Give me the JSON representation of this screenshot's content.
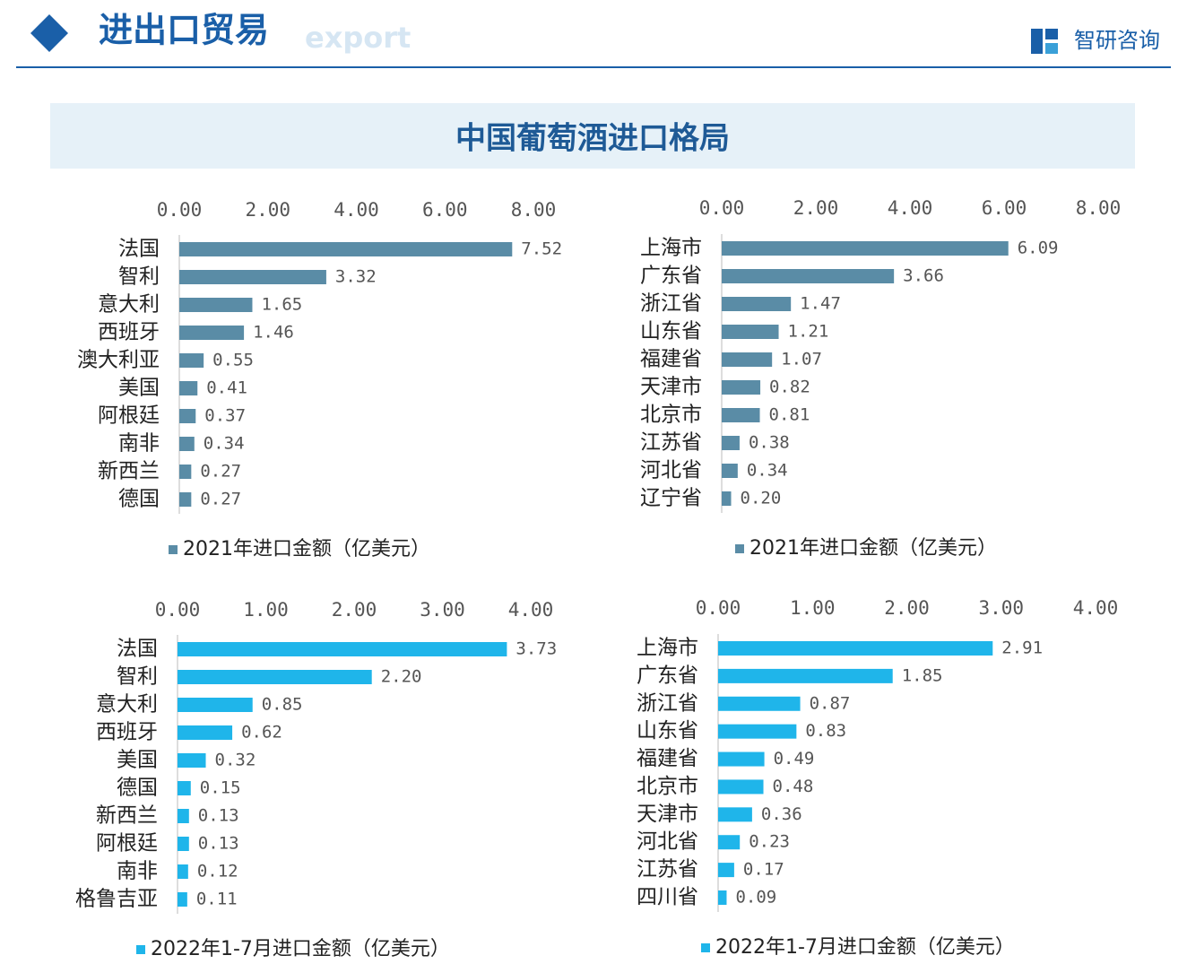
{
  "header": {
    "title": "进出口贸易",
    "subtitle": "export",
    "brand": "智研咨询"
  },
  "banner": "中国葡萄酒进口格局",
  "chart_data": [
    {
      "type": "bar",
      "orientation": "horizontal",
      "categories": [
        "法国",
        "智利",
        "意大利",
        "西班牙",
        "澳大利亚",
        "美国",
        "阿根廷",
        "南非",
        "新西兰",
        "德国"
      ],
      "series": [
        {
          "name": "2021年进口金额（亿美元）",
          "color": "#5a8ca6",
          "values": [
            7.52,
            3.32,
            1.65,
            1.46,
            0.55,
            0.41,
            0.37,
            0.34,
            0.27,
            0.27
          ],
          "value_labels": [
            "7.52",
            "3.32",
            "1.65",
            "1.46",
            "0.55",
            "0.41",
            "0.37",
            "0.34",
            "0.27",
            "0.27"
          ]
        }
      ],
      "xlim": [
        0,
        8
      ],
      "xticks": [
        {
          "value": 0,
          "label": "0.00"
        },
        {
          "value": 2,
          "label": "2.00"
        },
        {
          "value": 4,
          "label": "4.00"
        },
        {
          "value": 6,
          "label": "6.00"
        },
        {
          "value": 8,
          "label": "8.00"
        }
      ]
    },
    {
      "type": "bar",
      "orientation": "horizontal",
      "categories": [
        "上海市",
        "广东省",
        "浙江省",
        "山东省",
        "福建省",
        "天津市",
        "北京市",
        "江苏省",
        "河北省",
        "辽宁省"
      ],
      "series": [
        {
          "name": "2021年进口金额（亿美元）",
          "color": "#5a8ca6",
          "values": [
            6.09,
            3.66,
            1.47,
            1.21,
            1.07,
            0.82,
            0.81,
            0.38,
            0.34,
            0.2
          ],
          "value_labels": [
            "6.09",
            "3.66",
            "1.47",
            "1.21",
            "1.07",
            "0.82",
            "0.81",
            "0.38",
            "0.34",
            "0.20"
          ]
        }
      ],
      "xlim": [
        0,
        8
      ],
      "xticks": [
        {
          "value": 0,
          "label": "0.00"
        },
        {
          "value": 2,
          "label": "2.00"
        },
        {
          "value": 4,
          "label": "4.00"
        },
        {
          "value": 6,
          "label": "6.00"
        },
        {
          "value": 8,
          "label": "8.00"
        }
      ]
    },
    {
      "type": "bar",
      "orientation": "horizontal",
      "categories": [
        "法国",
        "智利",
        "意大利",
        "西班牙",
        "美国",
        "德国",
        "新西兰",
        "阿根廷",
        "南非",
        "格鲁吉亚"
      ],
      "series": [
        {
          "name": "2022年1-7月进口金额（亿美元）",
          "color": "#1fb5ea",
          "values": [
            3.73,
            2.2,
            0.85,
            0.62,
            0.32,
            0.15,
            0.13,
            0.13,
            0.12,
            0.11
          ],
          "value_labels": [
            "3.73",
            "2.20",
            "0.85",
            "0.62",
            "0.32",
            "0.15",
            "0.13",
            "0.13",
            "0.12",
            "0.11"
          ]
        }
      ],
      "xlim": [
        0,
        4
      ],
      "xticks": [
        {
          "value": 0,
          "label": "0.00"
        },
        {
          "value": 1,
          "label": "1.00"
        },
        {
          "value": 2,
          "label": "2.00"
        },
        {
          "value": 3,
          "label": "3.00"
        },
        {
          "value": 4,
          "label": "4.00"
        }
      ]
    },
    {
      "type": "bar",
      "orientation": "horizontal",
      "categories": [
        "上海市",
        "广东省",
        "浙江省",
        "山东省",
        "福建省",
        "北京市",
        "天津市",
        "河北省",
        "江苏省",
        "四川省"
      ],
      "series": [
        {
          "name": "2022年1-7月进口金额（亿美元）",
          "color": "#1fb5ea",
          "values": [
            2.91,
            1.85,
            0.87,
            0.83,
            0.49,
            0.48,
            0.36,
            0.23,
            0.17,
            0.09
          ],
          "value_labels": [
            "2.91",
            "1.85",
            "0.87",
            "0.83",
            "0.49",
            "0.48",
            "0.36",
            "0.23",
            "0.17",
            "0.09"
          ]
        }
      ],
      "xlim": [
        0,
        4
      ],
      "xticks": [
        {
          "value": 0,
          "label": "0.00"
        },
        {
          "value": 1,
          "label": "1.00"
        },
        {
          "value": 2,
          "label": "2.00"
        },
        {
          "value": 3,
          "label": "3.00"
        },
        {
          "value": 4,
          "label": "4.00"
        }
      ]
    }
  ]
}
